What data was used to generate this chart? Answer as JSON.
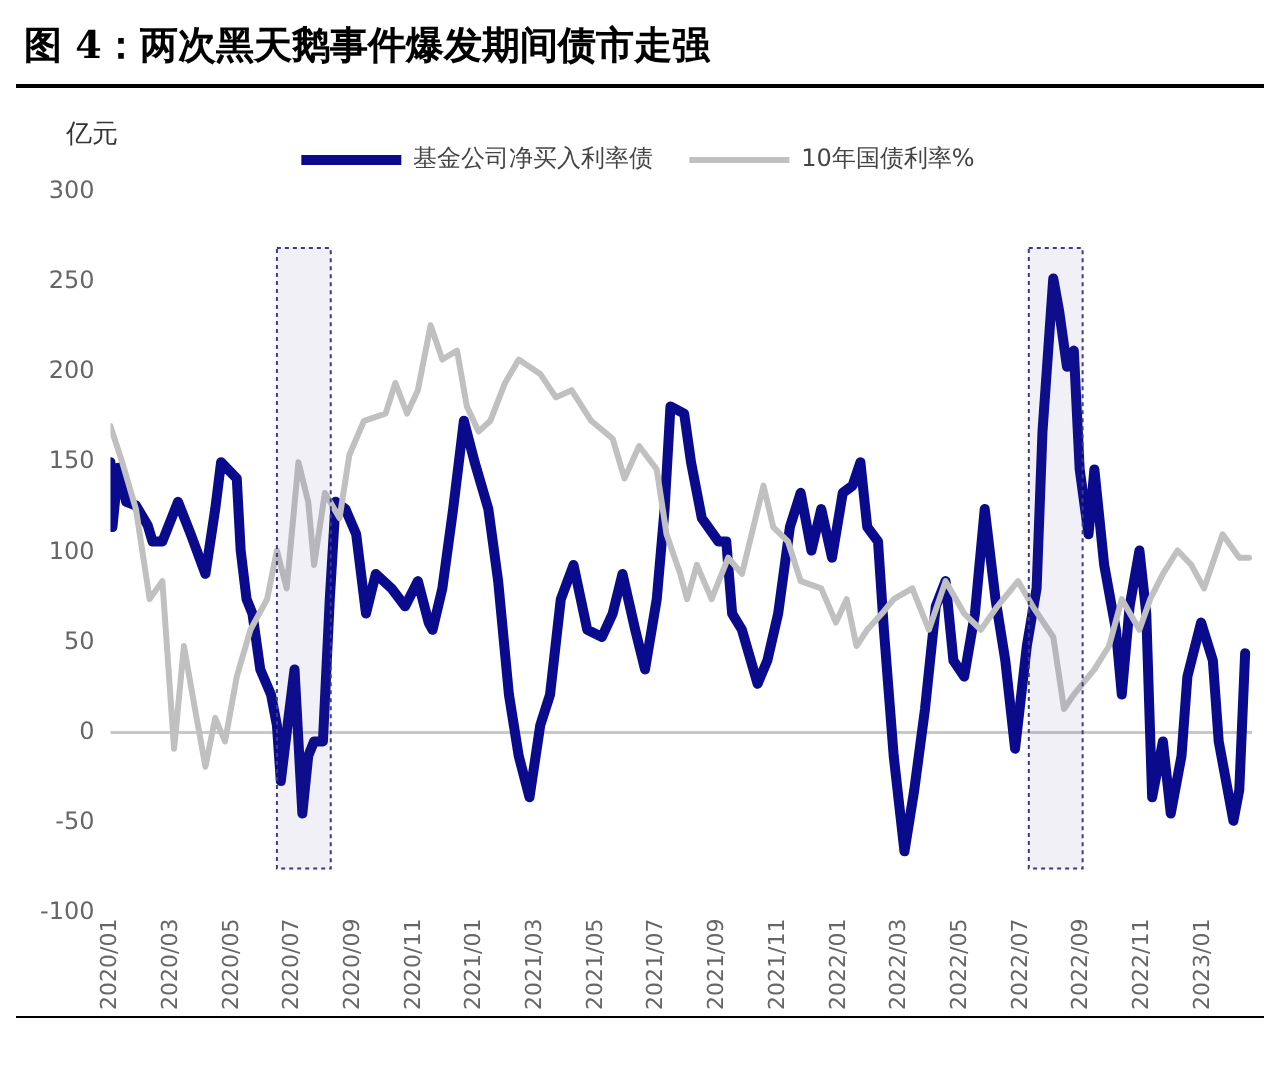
{
  "chart_data": {
    "type": "line",
    "title": "图 4：两次黑天鹅事件爆发期间债市走强",
    "ylabel": "亿元",
    "series": [
      {
        "name": "基金公司净买入利率债",
        "color": "#0a0a8c",
        "values": [
          150,
          114,
          147,
          128,
          126,
          115,
          106,
          106,
          128,
          110,
          88,
          124,
          150,
          141,
          101,
          74,
          66,
          35,
          21,
          4,
          -27,
          0,
          35,
          -45,
          -13,
          -5,
          -5,
          74,
          128,
          124,
          110,
          66,
          88,
          80,
          70,
          84,
          61,
          57,
          80,
          124,
          173,
          150,
          124,
          84,
          21,
          -13,
          -36,
          4,
          21,
          74,
          93,
          57,
          53,
          66,
          88,
          57,
          35,
          74,
          124,
          181,
          177,
          150,
          119,
          106,
          106,
          66,
          57,
          27,
          40,
          66,
          114,
          133,
          101,
          124,
          97,
          133,
          137,
          150,
          114,
          106,
          57,
          -13,
          -66,
          -32,
          13,
          70,
          84,
          40,
          31,
          66,
          124,
          74,
          40,
          -9,
          48,
          80,
          167,
          252,
          234,
          203,
          212,
          146,
          110,
          146,
          93,
          57,
          21,
          70,
          101,
          66,
          -36,
          -5,
          -45,
          -13,
          31,
          61,
          40,
          -5,
          -49,
          -32,
          44
        ],
        "x": [
          "2020-01-01",
          "2020-01-03",
          "2020-01-09",
          "2020-01-17",
          "2020-01-27",
          "2020-02-08",
          "2020-02-13",
          "2020-02-23",
          "2020-03-08",
          "2020-03-21",
          "2020-04-05",
          "2020-04-15",
          "2020-04-21",
          "2020-05-06",
          "2020-05-10",
          "2020-05-16",
          "2020-05-22",
          "2020-05-30",
          "2020-06-10",
          "2020-06-16",
          "2020-06-20",
          "2020-06-26",
          "2020-07-03",
          "2020-07-11",
          "2020-07-17",
          "2020-07-23",
          "2020-08-01",
          "2020-08-08",
          "2020-08-14",
          "2020-08-24",
          "2020-09-04",
          "2020-09-14",
          "2020-09-24",
          "2020-10-09",
          "2020-10-23",
          "2020-11-05",
          "2020-11-16",
          "2020-11-20",
          "2020-11-30",
          "2020-12-10",
          "2020-12-21",
          "2021-01-01",
          "2021-01-15",
          "2021-01-25",
          "2021-02-05",
          "2021-02-15",
          "2021-02-26",
          "2021-03-06",
          "2021-03-16",
          "2021-03-27",
          "2021-04-09",
          "2021-04-23",
          "2021-05-07",
          "2021-05-18",
          "2021-05-28",
          "2021-06-10",
          "2021-06-20",
          "2021-07-01",
          "2021-07-09",
          "2021-07-15",
          "2021-07-29",
          "2021-08-05",
          "2021-08-16",
          "2021-09-02",
          "2021-09-10",
          "2021-09-16",
          "2021-09-26",
          "2021-10-11",
          "2021-10-21",
          "2021-11-01",
          "2021-11-13",
          "2021-11-24",
          "2021-12-04",
          "2021-12-14",
          "2021-12-25",
          "2022-01-05",
          "2022-01-15",
          "2022-01-23",
          "2022-01-30",
          "2022-02-10",
          "2022-02-16",
          "2022-02-26",
          "2022-03-06",
          "2022-03-16",
          "2022-03-27",
          "2022-04-07",
          "2022-04-17",
          "2022-04-25",
          "2022-05-05",
          "2022-05-16",
          "2022-05-26",
          "2022-06-06",
          "2022-06-16",
          "2022-06-26",
          "2022-07-07",
          "2022-07-17",
          "2022-07-23",
          "2022-08-03",
          "2022-08-09",
          "2022-08-17",
          "2022-08-24",
          "2022-08-30",
          "2022-09-08",
          "2022-09-14",
          "2022-09-24",
          "2022-10-05",
          "2022-10-11",
          "2022-10-19",
          "2022-10-29",
          "2022-11-05",
          "2022-11-11",
          "2022-11-22",
          "2022-11-30",
          "2022-12-10",
          "2022-12-16",
          "2022-12-30",
          "2023-01-11",
          "2023-01-17",
          "2023-02-01",
          "2023-02-07",
          "2023-02-13"
        ]
      },
      {
        "name": "10年国债利率%",
        "color": "#c0c0c0",
        "values": [
          170,
          150,
          124,
          74,
          84,
          -9,
          48,
          17,
          -19,
          8,
          -5,
          31,
          57,
          74,
          101,
          80,
          150,
          128,
          93,
          133,
          119,
          154,
          173,
          177,
          194,
          177,
          190,
          226,
          207,
          212,
          181,
          167,
          173,
          194,
          207,
          199,
          186,
          190,
          173,
          163,
          141,
          159,
          146,
          110,
          88,
          74,
          93,
          74,
          97,
          88,
          137,
          114,
          106,
          84,
          80,
          61,
          74,
          48,
          57,
          66,
          74,
          80,
          57,
          84,
          66,
          57,
          70,
          84,
          70,
          53,
          13,
          21,
          35,
          48,
          74,
          57,
          74,
          88,
          101,
          93,
          80,
          110,
          97,
          97
        ],
        "x": [
          "2020-01-01",
          "2020-01-13",
          "2020-01-27",
          "2020-02-10",
          "2020-02-23",
          "2020-03-04",
          "2020-03-14",
          "2020-03-24",
          "2020-04-05",
          "2020-04-15",
          "2020-04-25",
          "2020-05-06",
          "2020-05-20",
          "2020-06-06",
          "2020-06-16",
          "2020-06-26",
          "2020-07-07",
          "2020-07-17",
          "2020-07-23",
          "2020-08-03",
          "2020-08-18",
          "2020-08-28",
          "2020-09-12",
          "2020-10-03",
          "2020-10-13",
          "2020-10-25",
          "2020-11-05",
          "2020-11-18",
          "2020-11-30",
          "2020-12-14",
          "2020-12-24",
          "2021-01-05",
          "2021-01-17",
          "2021-02-01",
          "2021-02-15",
          "2021-03-06",
          "2021-03-22",
          "2021-04-07",
          "2021-04-27",
          "2021-05-18",
          "2021-05-30",
          "2021-06-14",
          "2021-07-01",
          "2021-07-11",
          "2021-07-25",
          "2021-08-01",
          "2021-08-11",
          "2021-08-26",
          "2021-09-12",
          "2021-09-26",
          "2021-10-17",
          "2021-10-27",
          "2021-11-11",
          "2021-11-24",
          "2021-12-14",
          "2021-12-29",
          "2022-01-09",
          "2022-01-19",
          "2022-01-30",
          "2022-02-14",
          "2022-02-26",
          "2022-03-14",
          "2022-03-31",
          "2022-04-17",
          "2022-05-05",
          "2022-05-22",
          "2022-06-08",
          "2022-06-29",
          "2022-07-13",
          "2022-08-03",
          "2022-08-14",
          "2022-08-24",
          "2022-09-14",
          "2022-09-29",
          "2022-10-11",
          "2022-10-29",
          "2022-11-09",
          "2022-11-22",
          "2022-12-06",
          "2022-12-20",
          "2023-01-02",
          "2023-01-21",
          "2023-02-07",
          "2023-02-17"
        ]
      }
    ],
    "xlim": [
      "2020-01-01",
      "2023-02-20"
    ],
    "xticks": [
      {
        "value": "2020-01",
        "label": "2020/01"
      },
      {
        "value": "2020-03",
        "label": "2020/03"
      },
      {
        "value": "2020-05",
        "label": "2020/05"
      },
      {
        "value": "2020-07",
        "label": "2020/07"
      },
      {
        "value": "2020-09",
        "label": "2020/09"
      },
      {
        "value": "2020-11",
        "label": "2020/11"
      },
      {
        "value": "2021-01",
        "label": "2021/01"
      },
      {
        "value": "2021-03",
        "label": "2021/03"
      },
      {
        "value": "2021-05",
        "label": "2021/05"
      },
      {
        "value": "2021-07",
        "label": "2021/07"
      },
      {
        "value": "2021-09",
        "label": "2021/09"
      },
      {
        "value": "2021-11",
        "label": "2021/11"
      },
      {
        "value": "2022-01",
        "label": "2022/01"
      },
      {
        "value": "2022-03",
        "label": "2022/03"
      },
      {
        "value": "2022-05",
        "label": "2022/05"
      },
      {
        "value": "2022-07",
        "label": "2022/07"
      },
      {
        "value": "2022-09",
        "label": "2022/09"
      },
      {
        "value": "2022-11",
        "label": "2022/11"
      },
      {
        "value": "2023-01",
        "label": "2023/01"
      }
    ],
    "ylim": [
      -100,
      300
    ],
    "yticks": [
      -100,
      -50,
      0,
      50,
      100,
      150,
      200,
      250,
      300
    ],
    "bands": [
      {
        "axis": "x",
        "from": "2020-06-16",
        "to": "2020-08-09",
        "color": "#3a3a8c"
      },
      {
        "axis": "x",
        "from": "2022-07-09",
        "to": "2022-09-02",
        "color": "#3a3a8c"
      }
    ],
    "ref_lines": [
      {
        "axis": "y",
        "value": 0,
        "color": "#c8c8c8"
      }
    ],
    "grid": false,
    "legend": "top",
    "marker": "none",
    "line_style": "solid"
  }
}
